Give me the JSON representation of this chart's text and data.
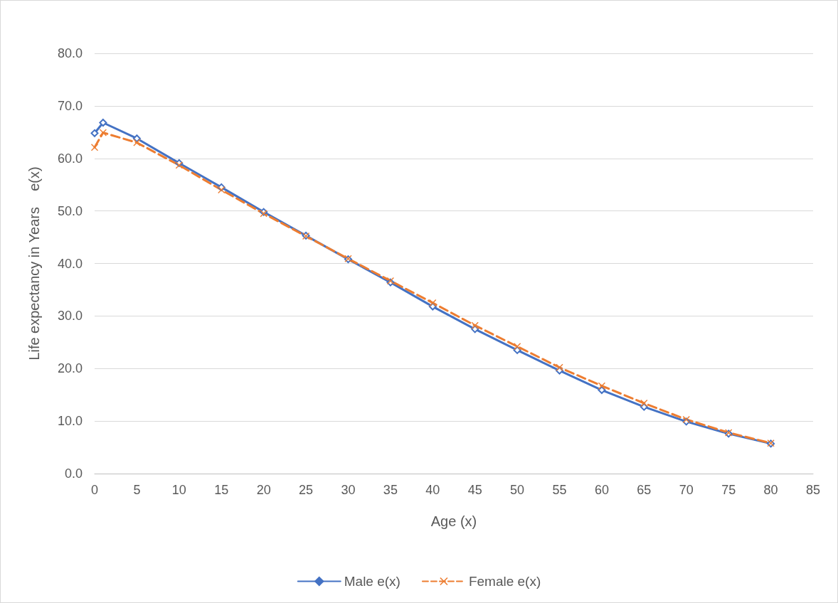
{
  "chart_data": {
    "type": "line",
    "xlabel": "Age (x)",
    "ylabel": "Life expectancy in Years    e(x)",
    "x": [
      0,
      1,
      5,
      10,
      15,
      20,
      25,
      30,
      35,
      40,
      45,
      50,
      55,
      60,
      65,
      70,
      75,
      80
    ],
    "series": [
      {
        "name": "Male e(x)",
        "color": "#4472c4",
        "marker": "diamond",
        "line_style": "solid",
        "values": [
          64.8,
          66.8,
          63.8,
          59.1,
          54.5,
          49.8,
          45.3,
          40.8,
          36.4,
          31.8,
          27.5,
          23.5,
          19.6,
          15.9,
          12.7,
          9.9,
          7.6,
          5.7
        ]
      },
      {
        "name": "Female e(x)",
        "color": "#ed7d31",
        "marker": "cross",
        "line_style": "dashed",
        "values": [
          62.1,
          64.9,
          63.0,
          58.7,
          54.0,
          49.5,
          45.2,
          40.9,
          36.7,
          32.5,
          28.2,
          24.2,
          20.2,
          16.7,
          13.4,
          10.3,
          7.8,
          5.8
        ]
      }
    ],
    "xlim": [
      0,
      85
    ],
    "xticks": [
      0,
      5,
      10,
      15,
      20,
      25,
      30,
      35,
      40,
      45,
      50,
      55,
      60,
      65,
      70,
      75,
      80,
      85
    ],
    "ylim": [
      0,
      80
    ],
    "yticks": [
      {
        "value": 0,
        "label": "0.0"
      },
      {
        "value": 10,
        "label": "10.0"
      },
      {
        "value": 20,
        "label": "20.0"
      },
      {
        "value": 30,
        "label": "30.0"
      },
      {
        "value": 40,
        "label": "40.0"
      },
      {
        "value": 50,
        "label": "50.0"
      },
      {
        "value": 60,
        "label": "60.0"
      },
      {
        "value": 70,
        "label": "70.0"
      },
      {
        "value": 80,
        "label": "80.0"
      }
    ],
    "grid": "y",
    "legend": "bottom"
  }
}
